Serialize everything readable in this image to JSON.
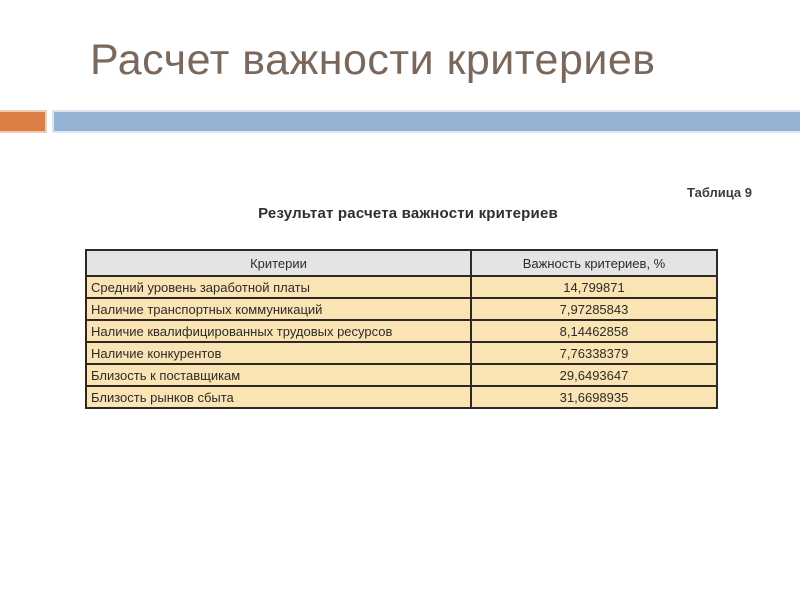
{
  "slide": {
    "title": "Расчет важности критериев",
    "table_label": "Таблица 9",
    "table_title": "Результат расчета важности критериев"
  },
  "table": {
    "headers": [
      "Критерии",
      "Важность критериев, %"
    ],
    "rows": [
      {
        "criterion": "Средний уровень заработной платы",
        "value": "14,799871"
      },
      {
        "criterion": "Наличие транспортных коммуникаций",
        "value": "7,97285843"
      },
      {
        "criterion": "Наличие квалифицированных трудовых ресурсов",
        "value": "8,14462858"
      },
      {
        "criterion": "Наличие конкурентов",
        "value": "7,76338379"
      },
      {
        "criterion": "Близость к поставщикам",
        "value": "29,6493647"
      },
      {
        "criterion": "Близость рынков сбыта",
        "value": "31,6698935"
      }
    ]
  },
  "colors": {
    "title_text": "#7a685c",
    "accent_orange": "#dd7e45",
    "accent_blue": "#95b3d4",
    "header_bg": "#e4e4e4",
    "row_bg": "#fbe4b4",
    "table_border": "#2d2a26"
  }
}
